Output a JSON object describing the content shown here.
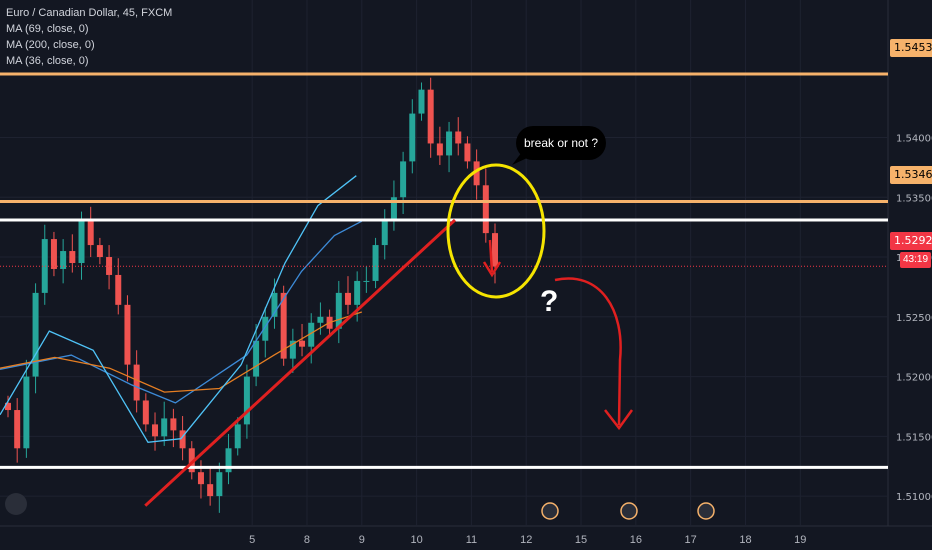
{
  "legend": {
    "title": "Euro / Canadian Dollar, 45, FXCM",
    "ma1": "MA (69, close, 0)",
    "ma2": "MA (200, close, 0)",
    "ma3": "MA (36, close, 0)"
  },
  "annotations": {
    "bubble_text": "break or not ?",
    "question_mark": "?"
  },
  "price_labels": {
    "upper_resistance": "1.54531",
    "mid_resistance": "1.53464",
    "last_price": "1.52923",
    "timer": "43:19"
  },
  "colors": {
    "background": "#131722",
    "up": "#26a69a",
    "down": "#ef5350",
    "orange_level": "#f6b26b",
    "white_level": "#ffffff",
    "trendline": "#e02020",
    "circle": "#f5e400",
    "ma_long": "#e67e22",
    "ma_mid": "#3d8bd8",
    "ma_short": "#4fc3f7"
  },
  "chart_data": {
    "type": "candlestick",
    "title": "Euro / Canadian Dollar, 45, FXCM",
    "y_ticks": [
      "1.54000",
      "1.53500",
      "1.53000",
      "1.52500",
      "1.52000",
      "1.51500",
      "1.51000"
    ],
    "ylim": [
      1.5075,
      1.5515
    ],
    "x_ticks": [
      "5",
      "8",
      "9",
      "10",
      "11",
      "12",
      "15",
      "16",
      "17",
      "18",
      "19"
    ],
    "x_tick_positions": [
      4.6,
      5.6,
      6.6,
      7.6,
      8.6,
      9.6,
      10.6,
      11.6,
      12.6,
      13.6,
      14.6
    ],
    "xlim": [
      0,
      16.2
    ],
    "levels": [
      {
        "name": "upper-resistance",
        "price": 1.54531,
        "color": "orange"
      },
      {
        "name": "mid-resistance",
        "price": 1.53464,
        "color": "orange"
      },
      {
        "name": "range-top",
        "price": 1.5331,
        "color": "white"
      },
      {
        "name": "support",
        "price": 1.5124,
        "color": "white"
      },
      {
        "name": "last-price",
        "price": 1.52923,
        "color": "red-dotted"
      }
    ],
    "trendline": {
      "start": [
        2.65,
        1.5092
      ],
      "end": [
        8.3,
        1.5331
      ]
    },
    "series_ma": [
      {
        "name": "MA (69, close, 0)",
        "points": [
          [
            0.0,
            1.5206
          ],
          [
            1.3,
            1.5218
          ],
          [
            2.4,
            1.5193
          ],
          [
            3.2,
            1.5178
          ],
          [
            4.5,
            1.5218
          ],
          [
            5.5,
            1.5288
          ],
          [
            6.1,
            1.5318
          ],
          [
            6.6,
            1.533
          ]
        ]
      },
      {
        "name": "MA (200, close, 0)",
        "points": [
          [
            0.0,
            1.5207
          ],
          [
            1.0,
            1.5216
          ],
          [
            2.0,
            1.5207
          ],
          [
            3.0,
            1.5187
          ],
          [
            4.0,
            1.519
          ],
          [
            5.0,
            1.5218
          ],
          [
            6.0,
            1.5245
          ],
          [
            6.6,
            1.5254
          ]
        ]
      },
      {
        "name": "MA (36, close, 0)",
        "points": [
          [
            0.0,
            1.5168
          ],
          [
            0.9,
            1.5238
          ],
          [
            1.7,
            1.5222
          ],
          [
            2.7,
            1.5145
          ],
          [
            3.3,
            1.5148
          ],
          [
            4.4,
            1.521
          ],
          [
            5.2,
            1.5295
          ],
          [
            5.8,
            1.5343
          ],
          [
            6.5,
            1.5368
          ]
        ]
      }
    ],
    "candles_close": [
      1.5172,
      1.514,
      1.52,
      1.527,
      1.5315,
      1.529,
      1.5305,
      1.5295,
      1.533,
      1.531,
      1.53,
      1.5285,
      1.526,
      1.521,
      1.518,
      1.516,
      1.515,
      1.5165,
      1.5155,
      1.514,
      1.512,
      1.511,
      1.51,
      1.512,
      1.514,
      1.516,
      1.52,
      1.523,
      1.525,
      1.527,
      1.5215,
      1.523,
      1.5225,
      1.5245,
      1.525,
      1.524,
      1.527,
      1.526,
      1.528,
      1.528,
      1.531,
      1.533,
      1.535,
      1.538,
      1.542,
      1.544,
      1.5395,
      1.5385,
      1.5405,
      1.5395,
      1.538,
      1.536,
      1.532,
      1.5292
    ]
  }
}
